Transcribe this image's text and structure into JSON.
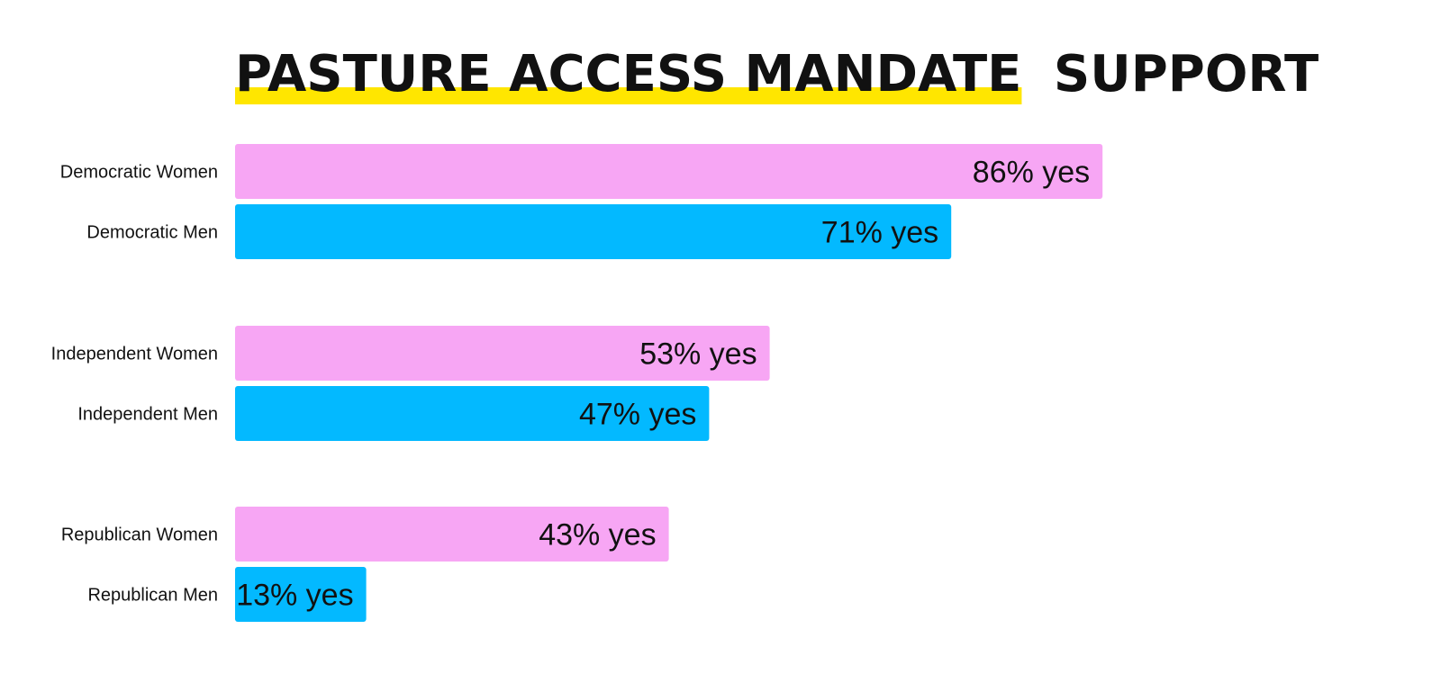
{
  "chart_data": {
    "type": "bar",
    "orientation": "horizontal",
    "title": {
      "highlighted": "PASTURE ACCESS MANDATE",
      "rest": "SUPPORT"
    },
    "categories": [
      "Democratic Women",
      "Democratic Men",
      "Independent Women",
      "Independent Men",
      "Republican Women",
      "Republican Men"
    ],
    "values": [
      86,
      71,
      53,
      47,
      43,
      13
    ],
    "data_labels": [
      "86% yes",
      "71% yes",
      "53% yes",
      "47% yes",
      "43% yes",
      "13% yes"
    ],
    "groups": [
      "Democratic",
      "Independent",
      "Republican"
    ],
    "unit": "%",
    "xlim": [
      0,
      100
    ],
    "grid": false,
    "legend": "none",
    "colors": {
      "women": "#F7A6F4",
      "men": "#03B9FF",
      "highlight": "#FFE600",
      "text": "#111111"
    }
  }
}
